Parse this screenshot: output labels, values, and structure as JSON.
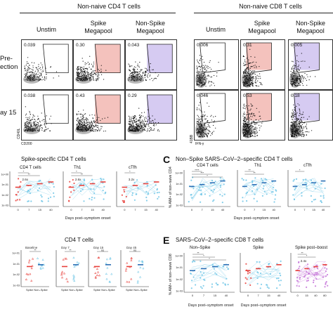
{
  "figure": {
    "col_headers": {
      "cd4_group": "Non-naive CD4 T cells",
      "cd8_group": "Non-naive CD8 T cells",
      "unstim": "Unstim",
      "spike_line1": "Spike",
      "spike_line2": "Megapool",
      "nonspike_line1": "Non-Spike",
      "nonspike_line2": "Megapool"
    },
    "row_labels": {
      "row1_line1": "Pre-",
      "row1_line2": "ection",
      "row2": "ay 15"
    },
    "axis_labels": {
      "cd40l": "CD40L",
      "cd200": "CD200",
      "cd4_x": "CD4",
      "fourone_bb": "41BB",
      "ifng": "IFN-γ"
    },
    "facs_percentages": {
      "cd4": [
        [
          "0.039",
          "0.30",
          "0.043"
        ],
        [
          "0.038",
          "0.43",
          "0.29"
        ]
      ],
      "cd8": [
        [
          "0.006",
          "0.31",
          "0.005"
        ],
        [
          "0.046",
          "0.53",
          "0.18"
        ]
      ]
    },
    "panels": {
      "b_title": "Spike-specific CD4 T cells",
      "c_letter": "C",
      "c_title": "Non–Spike SARS–CoV–2–specific CD4 T cells",
      "d_title": "CD4 T cells",
      "e_letter": "E",
      "e_title": "SARS–CoV–2–specific CD8 T cells",
      "b_sub": [
        "CD4 T cells",
        "Th1",
        "cTfh"
      ],
      "c_sub": [
        "CD4 T cells",
        "Th1",
        "cTfh"
      ],
      "d_sub": [
        "Baseline",
        "Day 7",
        "Day 15",
        "Day 45"
      ],
      "e_sub": [
        "Non–Spike",
        "Spike",
        "Spike post–boost"
      ],
      "xaxis_dpso": "Days post–symptom onset",
      "c_ylabel": "% AIM+ of non–naive CD4",
      "e_ylabel": "% AIM+ of non–naive CD8",
      "x_ticks": [
        "0",
        "7",
        "15",
        "40"
      ],
      "e_ticks_boost": [
        "0",
        "15",
        "40",
        "80"
      ],
      "d_x_cats": [
        "Spike",
        "Non–Spike"
      ],
      "fold_b": [
        "2.6x",
        "2.6x",
        "3.2x"
      ],
      "fold_e": "2.4x",
      "ns": "ns",
      "stars": [
        "*",
        "**",
        "***",
        "****"
      ],
      "y_ticks_c": [
        "1e+00",
        "1e-01",
        "1e-02",
        "1e-03"
      ],
      "y_ticks_d": [
        "1e+01",
        "1e-01",
        "1e-02",
        "1e-03"
      ]
    },
    "colors": {
      "red": "#e8413c",
      "cyan": "#6ec6e6",
      "blue": "#2b6fb5",
      "purple": "#c473d8",
      "gate_red": "#f4c2bd",
      "gate_purple": "#d6cbf2"
    }
  }
}
